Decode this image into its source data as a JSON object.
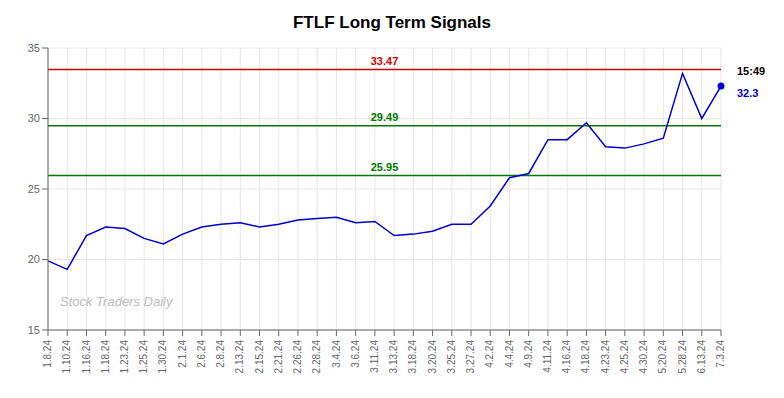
{
  "chart_data": {
    "type": "line",
    "title": "FTLF Long Term Signals",
    "categories": [
      "1.8.24",
      "1.10.24",
      "1.16.24",
      "1.18.24",
      "1.23.24",
      "1.25.24",
      "1.30.24",
      "2.1.24",
      "2.6.24",
      "2.8.24",
      "2.13.24",
      "2.15.24",
      "2.21.24",
      "2.26.24",
      "2.28.24",
      "3.4.24",
      "3.6.24",
      "3.11.24",
      "3.13.24",
      "3.18.24",
      "3.20.24",
      "3.25.24",
      "3.27.24",
      "4.2.24",
      "4.4.24",
      "4.9.24",
      "4.11.24",
      "4.16.24",
      "4.18.24",
      "4.23.24",
      "4.25.24",
      "4.30.24",
      "5.20.24",
      "5.28.24",
      "6.13.24",
      "7.3.24"
    ],
    "values": [
      19.9,
      19.3,
      21.7,
      22.3,
      22.2,
      21.5,
      21.1,
      21.8,
      22.3,
      22.5,
      22.6,
      22.3,
      22.5,
      22.8,
      22.9,
      23.0,
      22.6,
      22.7,
      21.7,
      21.8,
      22.0,
      22.5,
      22.5,
      23.8,
      25.8,
      26.1,
      28.5,
      28.5,
      29.7,
      28.0,
      27.9,
      28.2,
      28.6,
      33.2,
      30.0,
      32.3
    ],
    "color": "#0000cc",
    "ylim": [
      15,
      35
    ],
    "yticks": [
      15,
      20,
      25,
      30,
      35
    ],
    "grid": true,
    "reference_lines": [
      {
        "value": 33.47,
        "color": "#cc0000"
      },
      {
        "value": 29.49,
        "color": "#007700"
      },
      {
        "value": 25.95,
        "color": "#007700"
      }
    ],
    "time_label": "15:49",
    "price_label": {
      "text": "32.3",
      "color": "#0000cc"
    },
    "watermark": {
      "text": "Stock Traders Daily",
      "color": "#bbbbbb"
    }
  }
}
